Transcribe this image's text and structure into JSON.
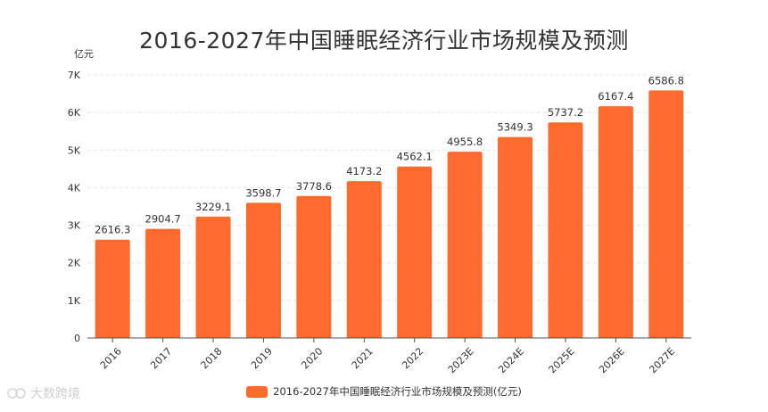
{
  "chart_data": {
    "type": "bar",
    "title": "2016-2027年中国睡眠经济行业市场规模及预测",
    "ylabel": "亿元",
    "xlabel": "",
    "categories": [
      "2016",
      "2017",
      "2018",
      "2019",
      "2020",
      "2021",
      "2022",
      "2023E",
      "2024E",
      "2025E",
      "2026E",
      "2027E"
    ],
    "series": [
      {
        "name": "2016-2027年中国睡眠经济行业市场规模及预测(亿元)",
        "values": [
          2616.3,
          2904.7,
          3229.1,
          3598.7,
          3778.6,
          4173.2,
          4562.1,
          4955.8,
          5349.3,
          5737.2,
          6167.4,
          6586.8
        ],
        "labels": [
          "2616.3",
          "2904.7",
          "3229.1",
          "3598.7",
          "3778.6",
          "4173.2",
          "4562.1",
          "4955.8",
          "5349.3",
          "5737.2",
          "6167.4",
          "6586.8"
        ]
      }
    ],
    "yticks": [
      0,
      1000,
      2000,
      3000,
      4000,
      5000,
      6000,
      7000
    ],
    "ytick_labels": [
      "0",
      "1K",
      "2K",
      "3K",
      "4K",
      "5K",
      "6K",
      "7K"
    ],
    "ylim": [
      0,
      7000
    ],
    "grid": true,
    "legend": "bottom-center"
  },
  "colors": {
    "bar": "#ff6b2c",
    "grid": "#e6e6e6",
    "axis": "#555555"
  },
  "watermark": {
    "text": "大数跨境",
    "icon": "watermark-logo-icon"
  }
}
